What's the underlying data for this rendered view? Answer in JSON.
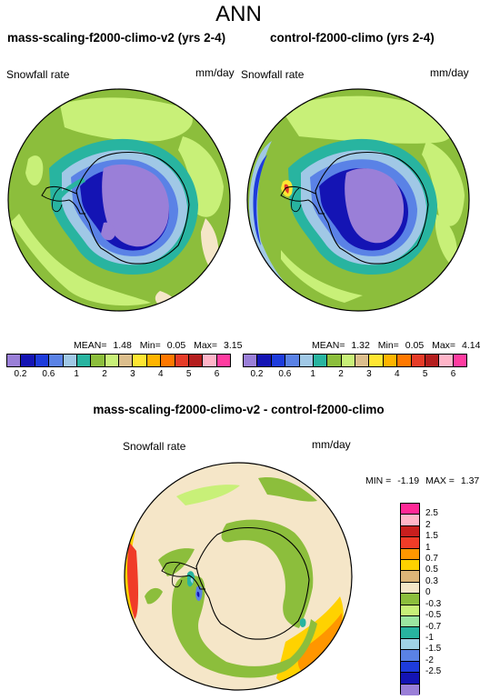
{
  "title": "ANN",
  "panels": [
    {
      "title": "mass-scaling-f2000-climo-v2 (yrs 2-4)",
      "variable": "Snowfall rate",
      "units": "mm/day",
      "stats": {
        "mean_label": "MEAN=",
        "mean": "1.48",
        "min_label": "Min=",
        "min": "0.05",
        "max_label": "Max=",
        "max": "3.15"
      }
    },
    {
      "title": "control-f2000-climo (yrs 2-4)",
      "variable": "Snowfall rate",
      "units": "mm/day",
      "stats": {
        "mean_label": "MEAN=",
        "mean": "1.32",
        "min_label": "Min=",
        "min": "0.05",
        "max_label": "Max=",
        "max": "4.14"
      }
    }
  ],
  "diff": {
    "title": "mass-scaling-f2000-climo-v2 - control-f2000-climo",
    "variable": "Snowfall rate",
    "units": "mm/day",
    "stats": {
      "min_label": "MIN =",
      "min": "-1.19",
      "max_label": "MAX =",
      "max": "1.37"
    }
  },
  "colorbar_top": {
    "colors": [
      "#9a7fd8",
      "#1414b4",
      "#1e3cdc",
      "#5a82e6",
      "#a0c8e6",
      "#28b4a0",
      "#8cbe3c",
      "#c8f078",
      "#dcbe8c",
      "#ffe632",
      "#ffb400",
      "#ff7800",
      "#e63c28",
      "#b41e1e",
      "#ffb4c8",
      "#ff3ca0"
    ],
    "ticks": [
      "0.2",
      "0.6",
      "1",
      "2",
      "3",
      "4",
      "5",
      "6"
    ]
  },
  "colorbar_diff": {
    "colors": [
      "#ff2896",
      "#ffb4c8",
      "#c81e1e",
      "#f03c28",
      "#ff9600",
      "#ffd200",
      "#dcb478",
      "#f5e6c8",
      "#8cbe3c",
      "#c8f078",
      "#9be6a0",
      "#28b4a0",
      "#a0d2e6",
      "#5a82e6",
      "#1e3cdc",
      "#1414b4",
      "#9a7fd8"
    ],
    "ticks": [
      "2.5",
      "2",
      "1.5",
      "1",
      "0.7",
      "0.5",
      "0.3",
      "0",
      "-0.3",
      "-0.5",
      "-0.7",
      "-1",
      "-1.5",
      "-2",
      "-2.5"
    ]
  }
}
